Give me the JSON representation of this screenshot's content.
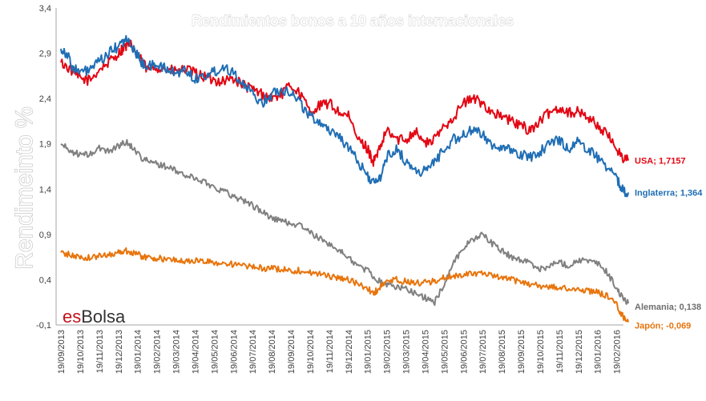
{
  "chart_data": {
    "type": "line",
    "title": "Rendimientos bonos a 10 años internacionales",
    "ylabel": "Rendimeinto %",
    "xlabel": "",
    "ylim": [
      -0.1,
      3.4
    ],
    "yticks": [
      "3,4",
      "2,9",
      "2,4",
      "1,9",
      "1,4",
      "0,9",
      "0,4",
      "-0,1"
    ],
    "ytick_values": [
      3.4,
      2.9,
      2.4,
      1.9,
      1.4,
      0.9,
      0.4,
      -0.1
    ],
    "x_labels": [
      "19/09/2013",
      "19/10/2013",
      "19/11/2013",
      "19/12/2013",
      "19/01/2014",
      "19/02/2014",
      "19/03/2014",
      "19/04/2014",
      "19/05/2014",
      "19/06/2014",
      "19/07/2014",
      "19/08/2014",
      "19/09/2014",
      "19/10/2014",
      "19/11/2014",
      "19/12/2014",
      "19/01/2015",
      "19/02/2015",
      "19/03/2015",
      "19/04/2015",
      "19/05/2015",
      "19/06/2015",
      "19/07/2015",
      "19/08/2015",
      "19/09/2015",
      "19/10/2015",
      "19/11/2015",
      "19/12/2015",
      "19/01/2016",
      "19/02/2016"
    ],
    "grid": false,
    "series": [
      {
        "name": "USA",
        "end_label": "USA; 1,7157",
        "color": "#e30613",
        "points": [
          [
            0,
            2.8
          ],
          [
            0.5,
            2.72
          ],
          [
            1,
            2.62
          ],
          [
            1.5,
            2.6
          ],
          [
            2,
            2.72
          ],
          [
            2.5,
            2.8
          ],
          [
            3,
            2.9
          ],
          [
            3.3,
            2.97
          ],
          [
            3.6,
            3.0
          ],
          [
            4,
            2.88
          ],
          [
            4.5,
            2.72
          ],
          [
            5,
            2.75
          ],
          [
            5.5,
            2.72
          ],
          [
            6,
            2.7
          ],
          [
            6.5,
            2.72
          ],
          [
            7,
            2.68
          ],
          [
            7.5,
            2.64
          ],
          [
            8,
            2.6
          ],
          [
            8.5,
            2.6
          ],
          [
            9,
            2.62
          ],
          [
            9.5,
            2.55
          ],
          [
            10,
            2.5
          ],
          [
            10.5,
            2.45
          ],
          [
            11,
            2.4
          ],
          [
            11.5,
            2.45
          ],
          [
            12,
            2.55
          ],
          [
            12.5,
            2.45
          ],
          [
            13,
            2.25
          ],
          [
            13.5,
            2.32
          ],
          [
            14,
            2.35
          ],
          [
            14.5,
            2.25
          ],
          [
            15,
            2.2
          ],
          [
            15.5,
            1.95
          ],
          [
            16,
            1.85
          ],
          [
            16.3,
            1.7
          ],
          [
            16.6,
            1.82
          ],
          [
            17,
            2.05
          ],
          [
            17.5,
            1.95
          ],
          [
            18,
            1.95
          ],
          [
            18.5,
            2.05
          ],
          [
            19,
            1.9
          ],
          [
            19.5,
            1.95
          ],
          [
            20,
            2.1
          ],
          [
            20.5,
            2.2
          ],
          [
            21,
            2.35
          ],
          [
            21.5,
            2.4
          ],
          [
            22,
            2.35
          ],
          [
            22.5,
            2.25
          ],
          [
            23,
            2.2
          ],
          [
            23.5,
            2.15
          ],
          [
            24,
            2.1
          ],
          [
            24.5,
            2.05
          ],
          [
            25,
            2.15
          ],
          [
            25.5,
            2.25
          ],
          [
            26,
            2.3
          ],
          [
            26.5,
            2.25
          ],
          [
            27,
            2.25
          ],
          [
            27.5,
            2.2
          ],
          [
            28,
            2.1
          ],
          [
            28.5,
            2.0
          ],
          [
            29,
            1.85
          ],
          [
            29.3,
            1.75
          ],
          [
            29.6,
            1.7157
          ]
        ]
      },
      {
        "name": "Inglaterra",
        "end_label": "Inglaterra; 1,364",
        "color": "#1f6eb5",
        "points": [
          [
            0,
            2.95
          ],
          [
            0.3,
            2.9
          ],
          [
            0.6,
            2.75
          ],
          [
            1,
            2.68
          ],
          [
            1.5,
            2.72
          ],
          [
            2,
            2.8
          ],
          [
            2.5,
            2.9
          ],
          [
            3,
            2.98
          ],
          [
            3.4,
            3.05
          ],
          [
            3.8,
            2.95
          ],
          [
            4.2,
            2.8
          ],
          [
            4.6,
            2.75
          ],
          [
            5,
            2.78
          ],
          [
            5.5,
            2.72
          ],
          [
            6,
            2.68
          ],
          [
            6.5,
            2.72
          ],
          [
            7,
            2.62
          ],
          [
            7.5,
            2.65
          ],
          [
            8,
            2.7
          ],
          [
            8.5,
            2.75
          ],
          [
            9,
            2.7
          ],
          [
            9.5,
            2.55
          ],
          [
            10,
            2.45
          ],
          [
            10.5,
            2.35
          ],
          [
            11,
            2.45
          ],
          [
            11.5,
            2.5
          ],
          [
            12,
            2.48
          ],
          [
            12.5,
            2.35
          ],
          [
            13,
            2.2
          ],
          [
            13.5,
            2.15
          ],
          [
            14,
            2.05
          ],
          [
            14.5,
            2.0
          ],
          [
            15,
            1.85
          ],
          [
            15.5,
            1.7
          ],
          [
            16,
            1.55
          ],
          [
            16.4,
            1.45
          ],
          [
            16.7,
            1.55
          ],
          [
            17,
            1.75
          ],
          [
            17.5,
            1.85
          ],
          [
            18,
            1.7
          ],
          [
            18.5,
            1.6
          ],
          [
            19,
            1.6
          ],
          [
            19.5,
            1.7
          ],
          [
            20,
            1.85
          ],
          [
            20.5,
            1.95
          ],
          [
            21,
            2.0
          ],
          [
            21.5,
            2.05
          ],
          [
            22,
            2.0
          ],
          [
            22.5,
            1.9
          ],
          [
            23,
            1.85
          ],
          [
            23.5,
            1.82
          ],
          [
            24,
            1.78
          ],
          [
            24.5,
            1.75
          ],
          [
            25,
            1.82
          ],
          [
            25.5,
            1.9
          ],
          [
            26,
            1.95
          ],
          [
            26.5,
            1.85
          ],
          [
            27,
            1.92
          ],
          [
            27.5,
            1.85
          ],
          [
            28,
            1.75
          ],
          [
            28.5,
            1.65
          ],
          [
            29,
            1.5
          ],
          [
            29.3,
            1.4
          ],
          [
            29.6,
            1.364
          ]
        ]
      },
      {
        "name": "Alemania",
        "end_label": "Alemania; 0,138",
        "color": "#808080",
        "points": [
          [
            0,
            1.9
          ],
          [
            0.5,
            1.82
          ],
          [
            1,
            1.78
          ],
          [
            1.5,
            1.78
          ],
          [
            2,
            1.85
          ],
          [
            2.5,
            1.82
          ],
          [
            3,
            1.88
          ],
          [
            3.4,
            1.92
          ],
          [
            3.8,
            1.85
          ],
          [
            4.2,
            1.75
          ],
          [
            4.6,
            1.7
          ],
          [
            5,
            1.68
          ],
          [
            5.5,
            1.65
          ],
          [
            6,
            1.6
          ],
          [
            6.5,
            1.55
          ],
          [
            7,
            1.52
          ],
          [
            7.5,
            1.48
          ],
          [
            8,
            1.42
          ],
          [
            8.5,
            1.38
          ],
          [
            9,
            1.32
          ],
          [
            9.5,
            1.28
          ],
          [
            10,
            1.22
          ],
          [
            10.5,
            1.15
          ],
          [
            11,
            1.08
          ],
          [
            11.5,
            1.05
          ],
          [
            12,
            1.02
          ],
          [
            12.5,
            1.0
          ],
          [
            13,
            0.92
          ],
          [
            13.5,
            0.85
          ],
          [
            14,
            0.8
          ],
          [
            14.5,
            0.72
          ],
          [
            15,
            0.65
          ],
          [
            15.5,
            0.55
          ],
          [
            16,
            0.5
          ],
          [
            16.5,
            0.4
          ],
          [
            17,
            0.35
          ],
          [
            17.5,
            0.32
          ],
          [
            18,
            0.3
          ],
          [
            18.5,
            0.25
          ],
          [
            19,
            0.2
          ],
          [
            19.5,
            0.15
          ],
          [
            20,
            0.35
          ],
          [
            20.5,
            0.6
          ],
          [
            21,
            0.75
          ],
          [
            21.5,
            0.85
          ],
          [
            22,
            0.9
          ],
          [
            22.5,
            0.8
          ],
          [
            23,
            0.72
          ],
          [
            23.5,
            0.65
          ],
          [
            24,
            0.62
          ],
          [
            24.5,
            0.58
          ],
          [
            25,
            0.52
          ],
          [
            25.5,
            0.55
          ],
          [
            26,
            0.6
          ],
          [
            26.5,
            0.55
          ],
          [
            27,
            0.62
          ],
          [
            27.5,
            0.6
          ],
          [
            28,
            0.58
          ],
          [
            28.5,
            0.48
          ],
          [
            29,
            0.3
          ],
          [
            29.3,
            0.2
          ],
          [
            29.6,
            0.138
          ]
        ]
      },
      {
        "name": "Japón",
        "end_label": "Japón; -0,069",
        "color": "#e8740c",
        "points": [
          [
            0,
            0.7
          ],
          [
            0.5,
            0.67
          ],
          [
            1,
            0.65
          ],
          [
            1.5,
            0.64
          ],
          [
            2,
            0.66
          ],
          [
            2.5,
            0.68
          ],
          [
            3,
            0.7
          ],
          [
            3.4,
            0.72
          ],
          [
            3.8,
            0.7
          ],
          [
            4.2,
            0.66
          ],
          [
            4.6,
            0.64
          ],
          [
            5,
            0.64
          ],
          [
            5.5,
            0.62
          ],
          [
            6,
            0.62
          ],
          [
            6.5,
            0.6
          ],
          [
            7,
            0.61
          ],
          [
            7.5,
            0.6
          ],
          [
            8,
            0.59
          ],
          [
            8.5,
            0.58
          ],
          [
            9,
            0.57
          ],
          [
            9.5,
            0.55
          ],
          [
            10,
            0.54
          ],
          [
            10.5,
            0.53
          ],
          [
            11,
            0.52
          ],
          [
            11.5,
            0.52
          ],
          [
            12,
            0.5
          ],
          [
            12.5,
            0.5
          ],
          [
            13,
            0.48
          ],
          [
            13.5,
            0.46
          ],
          [
            14,
            0.44
          ],
          [
            14.5,
            0.42
          ],
          [
            15,
            0.4
          ],
          [
            15.5,
            0.35
          ],
          [
            16,
            0.3
          ],
          [
            16.3,
            0.25
          ],
          [
            16.6,
            0.3
          ],
          [
            17,
            0.38
          ],
          [
            17.5,
            0.4
          ],
          [
            18,
            0.38
          ],
          [
            18.5,
            0.36
          ],
          [
            19,
            0.37
          ],
          [
            19.5,
            0.38
          ],
          [
            20,
            0.42
          ],
          [
            20.5,
            0.44
          ],
          [
            21,
            0.46
          ],
          [
            21.5,
            0.48
          ],
          [
            22,
            0.46
          ],
          [
            22.5,
            0.44
          ],
          [
            23,
            0.42
          ],
          [
            23.5,
            0.4
          ],
          [
            24,
            0.38
          ],
          [
            24.5,
            0.35
          ],
          [
            25,
            0.33
          ],
          [
            25.5,
            0.32
          ],
          [
            26,
            0.31
          ],
          [
            26.5,
            0.3
          ],
          [
            27,
            0.29
          ],
          [
            27.5,
            0.28
          ],
          [
            28,
            0.26
          ],
          [
            28.5,
            0.22
          ],
          [
            29,
            0.12
          ],
          [
            29.3,
            0.0
          ],
          [
            29.6,
            -0.069
          ]
        ]
      }
    ]
  },
  "logo": {
    "es": "es",
    "bolsa": "Bolsa"
  }
}
